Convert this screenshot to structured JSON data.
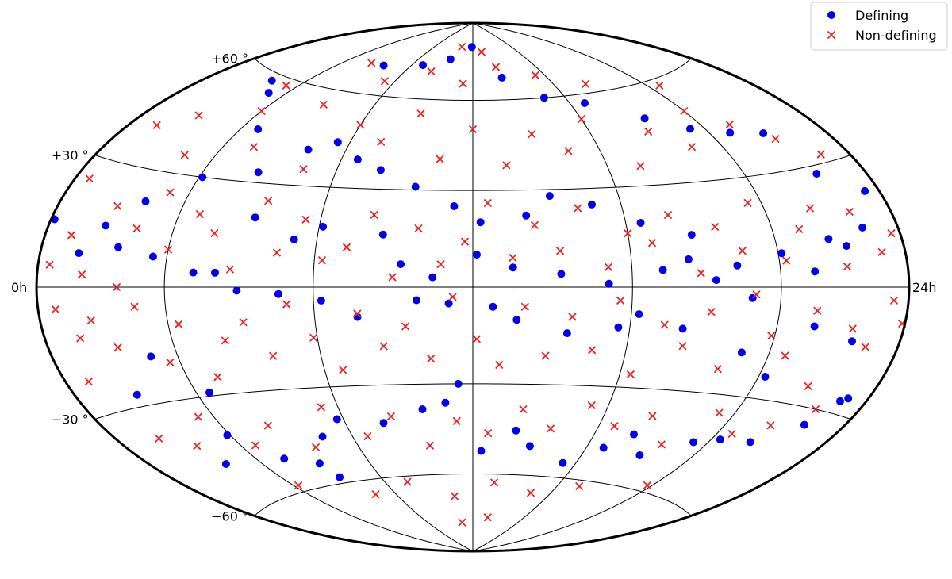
{
  "chart_data": {
    "type": "scatter",
    "projection": "hammer",
    "grid": true,
    "legend_position": "top-right",
    "x_tick_labels": {
      "left": "0h",
      "right": "24h"
    },
    "y_tick_labels": [
      {
        "dec": 60,
        "label": "+60$^\\circ$",
        "text": "+60",
        "deg": "°"
      },
      {
        "dec": 30,
        "label": "+30",
        "text": "+30",
        "deg": "°"
      },
      {
        "dec": -30,
        "label": "−30",
        "text": "−30",
        "deg": "°"
      },
      {
        "dec": -60,
        "label": "−60",
        "text": "−60",
        "deg": "°"
      }
    ],
    "series": [
      {
        "name": "Defining",
        "marker": "circle",
        "color": "#0000ee",
        "points": [
          [
            0.12,
            15
          ],
          [
            1.3,
            8
          ],
          [
            3.2,
            -18
          ],
          [
            5.4,
            4
          ],
          [
            3.9,
            -41
          ],
          [
            2.1,
            -27
          ],
          [
            2.7,
            -48
          ],
          [
            4.4,
            -29
          ],
          [
            5.0,
            -50
          ],
          [
            6.1,
            -53
          ],
          [
            6.3,
            -58
          ],
          [
            7.0,
            -45
          ],
          [
            7.8,
            -40
          ],
          [
            9.2,
            -42
          ],
          [
            10.5,
            -38
          ],
          [
            11.2,
            -36
          ],
          [
            11.6,
            -30
          ],
          [
            12.3,
            -52
          ],
          [
            13.4,
            -45
          ],
          [
            14.0,
            -50
          ],
          [
            15.5,
            -55
          ],
          [
            16.6,
            -49
          ],
          [
            17.3,
            -44
          ],
          [
            18.1,
            -50
          ],
          [
            19.5,
            -44
          ],
          [
            20.3,
            -42
          ],
          [
            21.4,
            -41
          ],
          [
            22.6,
            -34
          ],
          [
            23.1,
            -27
          ],
          [
            23.3,
            -26
          ],
          [
            22.4,
            -13
          ],
          [
            21.1,
            -10
          ],
          [
            20.2,
            -24
          ],
          [
            19.2,
            -18
          ],
          [
            17.4,
            -12
          ],
          [
            16.2,
            -8
          ],
          [
            15.7,
            -12
          ],
          [
            14.4,
            -14
          ],
          [
            13.1,
            -10
          ],
          [
            12.5,
            -6
          ],
          [
            11.4,
            -5
          ],
          [
            10.6,
            -4
          ],
          [
            9.1,
            -9
          ],
          [
            8.2,
            -4
          ],
          [
            7.1,
            -2
          ],
          [
            6.0,
            -1
          ],
          [
            4.8,
            4
          ],
          [
            3.6,
            8
          ],
          [
            2.5,
            10
          ],
          [
            1.9,
            15
          ],
          [
            2.8,
            22
          ],
          [
            4.1,
            30
          ],
          [
            4.6,
            45
          ],
          [
            3.3,
            55
          ],
          [
            2.6,
            58
          ],
          [
            6.4,
            70
          ],
          [
            8.7,
            72
          ],
          [
            10.3,
            75
          ],
          [
            11.9,
            80
          ],
          [
            13.6,
            68
          ],
          [
            15.1,
            60
          ],
          [
            16.6,
            57
          ],
          [
            18.3,
            50
          ],
          [
            19.5,
            45
          ],
          [
            20.7,
            42
          ],
          [
            21.8,
            40
          ],
          [
            22.3,
            28
          ],
          [
            23.5,
            22
          ],
          [
            22.8,
            14
          ],
          [
            21.6,
            12
          ],
          [
            20.1,
            9
          ],
          [
            18.8,
            6
          ],
          [
            17.7,
            15
          ],
          [
            16.4,
            19
          ],
          [
            15.2,
            25
          ],
          [
            14.1,
            28
          ],
          [
            13.4,
            22
          ],
          [
            12.2,
            20
          ],
          [
            11.5,
            25
          ],
          [
            10.4,
            31
          ],
          [
            9.3,
            36
          ],
          [
            8.5,
            39
          ],
          [
            7.6,
            44
          ],
          [
            6.8,
            41
          ],
          [
            5.7,
            33
          ],
          [
            6.2,
            20
          ],
          [
            7.4,
            14
          ],
          [
            8.1,
            18
          ],
          [
            9.7,
            16
          ],
          [
            10.2,
            7
          ],
          [
            11.0,
            3
          ],
          [
            12.1,
            10
          ],
          [
            13.0,
            6
          ],
          [
            14.2,
            4
          ],
          [
            15.4,
            1
          ],
          [
            16.8,
            5
          ],
          [
            17.5,
            8
          ],
          [
            18.2,
            2
          ],
          [
            19.2,
            -3
          ],
          [
            21.0,
            4
          ],
          [
            22.1,
            10
          ]
        ]
      },
      {
        "name": "Non-defining",
        "marker": "x",
        "color": "#ee2222",
        "points": [
          [
            0.4,
            5
          ],
          [
            0.6,
            -5
          ],
          [
            0.9,
            12
          ],
          [
            1.2,
            -12
          ],
          [
            0.5,
            25
          ],
          [
            0.8,
            -22
          ],
          [
            1.5,
            3
          ],
          [
            1.7,
            -8
          ],
          [
            2.0,
            20
          ],
          [
            2.3,
            -15
          ],
          [
            2.6,
            0
          ],
          [
            2.9,
            15
          ],
          [
            3.1,
            -5
          ],
          [
            3.4,
            25
          ],
          [
            3.7,
            -20
          ],
          [
            4.0,
            10
          ],
          [
            4.3,
            -10
          ],
          [
            4.6,
            20
          ],
          [
            4.9,
            -25
          ],
          [
            5.2,
            15
          ],
          [
            5.5,
            -15
          ],
          [
            5.8,
            5
          ],
          [
            6.1,
            -10
          ],
          [
            6.4,
            25
          ],
          [
            6.7,
            -20
          ],
          [
            7.0,
            10
          ],
          [
            7.3,
            -5
          ],
          [
            7.6,
            20
          ],
          [
            7.9,
            -15
          ],
          [
            8.2,
            8
          ],
          [
            8.5,
            -25
          ],
          [
            8.8,
            12
          ],
          [
            9.1,
            -8
          ],
          [
            9.4,
            22
          ],
          [
            9.7,
            -18
          ],
          [
            10.0,
            3
          ],
          [
            10.3,
            -12
          ],
          [
            10.6,
            18
          ],
          [
            10.9,
            -22
          ],
          [
            11.2,
            7
          ],
          [
            11.5,
            -3
          ],
          [
            11.8,
            14
          ],
          [
            12.1,
            -16
          ],
          [
            12.4,
            26
          ],
          [
            12.7,
            -24
          ],
          [
            13.0,
            9
          ],
          [
            13.3,
            -6
          ],
          [
            13.6,
            19
          ],
          [
            13.9,
            -21
          ],
          [
            14.2,
            11
          ],
          [
            14.5,
            -9
          ],
          [
            14.8,
            24
          ],
          [
            15.1,
            -19
          ],
          [
            15.4,
            6
          ],
          [
            15.7,
            -4
          ],
          [
            16.0,
            16
          ],
          [
            16.3,
            -26
          ],
          [
            16.6,
            13
          ],
          [
            16.9,
            -11
          ],
          [
            17.2,
            21
          ],
          [
            17.5,
            -17
          ],
          [
            17.8,
            4
          ],
          [
            18.1,
            -7
          ],
          [
            18.4,
            17
          ],
          [
            18.7,
            -23
          ],
          [
            19.0,
            10
          ],
          [
            19.3,
            -2
          ],
          [
            19.6,
            23
          ],
          [
            19.9,
            -13
          ],
          [
            20.2,
            7
          ],
          [
            20.5,
            -18
          ],
          [
            20.8,
            15
          ],
          [
            21.1,
            -6
          ],
          [
            21.4,
            20
          ],
          [
            21.7,
            -25
          ],
          [
            22.0,
            5
          ],
          [
            22.3,
            -10
          ],
          [
            22.6,
            18
          ],
          [
            22.9,
            -14
          ],
          [
            23.2,
            8
          ],
          [
            23.5,
            -3
          ],
          [
            23.7,
            12
          ],
          [
            23.9,
            -8
          ],
          [
            1.0,
            40
          ],
          [
            2.0,
            45
          ],
          [
            3.0,
            35
          ],
          [
            4.0,
            50
          ],
          [
            5.0,
            40
          ],
          [
            6.0,
            55
          ],
          [
            7.0,
            35
          ],
          [
            8.0,
            50
          ],
          [
            9.0,
            45
          ],
          [
            10.0,
            55
          ],
          [
            11.0,
            40
          ],
          [
            12.0,
            50
          ],
          [
            13.0,
            38
          ],
          [
            14.0,
            48
          ],
          [
            15.0,
            42
          ],
          [
            16.0,
            52
          ],
          [
            17.0,
            36
          ],
          [
            18.0,
            46
          ],
          [
            19.0,
            40
          ],
          [
            20.0,
            50
          ],
          [
            21.0,
            44
          ],
          [
            22.0,
            38
          ],
          [
            23.0,
            32
          ],
          [
            1.5,
            -38
          ],
          [
            2.5,
            -42
          ],
          [
            3.5,
            -35
          ],
          [
            4.5,
            -45
          ],
          [
            5.5,
            -40
          ],
          [
            6.5,
            -48
          ],
          [
            7.5,
            -36
          ],
          [
            8.5,
            -46
          ],
          [
            9.5,
            -40
          ],
          [
            10.5,
            -50
          ],
          [
            11.5,
            -42
          ],
          [
            12.5,
            -46
          ],
          [
            13.5,
            -38
          ],
          [
            14.5,
            -44
          ],
          [
            15.5,
            -36
          ],
          [
            16.5,
            -42
          ],
          [
            17.5,
            -38
          ],
          [
            18.5,
            -46
          ],
          [
            19.5,
            -35
          ],
          [
            20.5,
            -40
          ],
          [
            21.5,
            -36
          ],
          [
            22.5,
            -30
          ],
          [
            5.5,
            70
          ],
          [
            7.5,
            65
          ],
          [
            9.5,
            70
          ],
          [
            11.5,
            66
          ],
          [
            13.5,
            72
          ],
          [
            15.5,
            68
          ],
          [
            17.5,
            63
          ],
          [
            7.0,
            -65
          ],
          [
            9.0,
            -62
          ],
          [
            11.0,
            -68
          ],
          [
            13.0,
            -63
          ],
          [
            15.0,
            -66
          ],
          [
            17.0,
            -62
          ],
          [
            3.5,
            58
          ],
          [
            20.5,
            58
          ],
          [
            4.2,
            -58
          ],
          [
            19.8,
            -58
          ],
          [
            10.8,
            80
          ],
          [
            12.8,
            78
          ],
          [
            11.0,
            -78
          ],
          [
            13.2,
            -76
          ]
        ]
      }
    ]
  }
}
